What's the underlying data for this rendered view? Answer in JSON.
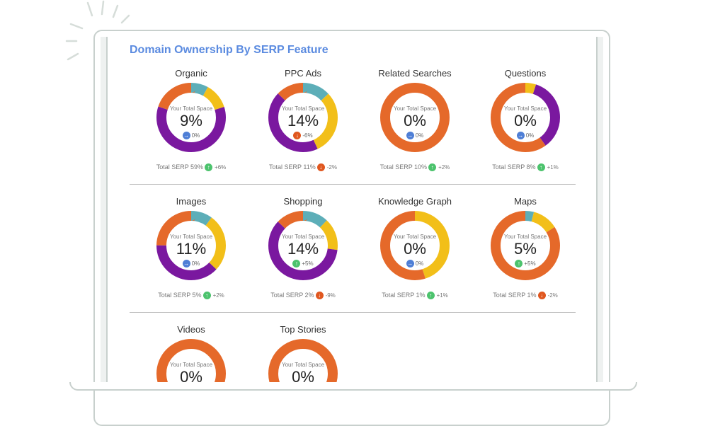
{
  "page": {
    "title": "Domain Ownership By SERP Feature"
  },
  "colors": {
    "orange": "#e5692a",
    "teal": "#5daeb8",
    "yellow": "#f2bf19",
    "purple": "#7a189f",
    "accent": "#5b8be0"
  },
  "cards": [
    {
      "title": "Organic",
      "center_label": "Your Total Space",
      "percent": "9%",
      "trend_icon": "arrow-right-icon",
      "trend_text": "0%",
      "footer_label": "Total SERP 59%",
      "footer_icon": "arrow-up-icon",
      "footer_change": "+6%",
      "segments": [
        {
          "color": "teal",
          "value": 0.08
        },
        {
          "color": "yellow",
          "value": 0.12
        },
        {
          "color": "purple",
          "value": 0.6
        },
        {
          "color": "orange",
          "value": 0.2
        }
      ]
    },
    {
      "title": "PPC Ads",
      "center_label": "Your Total Space",
      "percent": "14%",
      "trend_icon": "arrow-down-icon",
      "trend_text": "-6%",
      "footer_label": "Total SERP 11%",
      "footer_icon": "arrow-down-icon",
      "footer_change": "-2%",
      "segments": [
        {
          "color": "teal",
          "value": 0.13
        },
        {
          "color": "yellow",
          "value": 0.3
        },
        {
          "color": "purple",
          "value": 0.44
        },
        {
          "color": "orange",
          "value": 0.13
        }
      ]
    },
    {
      "title": "Related Searches",
      "center_label": "Your Total Space",
      "percent": "0%",
      "trend_icon": "arrow-right-icon",
      "trend_text": "0%",
      "footer_label": "Total SERP 10%",
      "footer_icon": "arrow-up-icon",
      "footer_change": "+2%",
      "segments": [
        {
          "color": "orange",
          "value": 1.0
        }
      ]
    },
    {
      "title": "Questions",
      "center_label": "Your Total Space",
      "percent": "0%",
      "trend_icon": "arrow-right-icon",
      "trend_text": "0%",
      "footer_label": "Total SERP 8%",
      "footer_icon": "arrow-up-icon",
      "footer_change": "+1%",
      "segments": [
        {
          "color": "yellow",
          "value": 0.05
        },
        {
          "color": "purple",
          "value": 0.35
        },
        {
          "color": "orange",
          "value": 0.6
        }
      ]
    },
    {
      "title": "Images",
      "center_label": "Your Total Space",
      "percent": "11%",
      "trend_icon": "arrow-right-icon",
      "trend_text": "0%",
      "footer_label": "Total SERP 5%",
      "footer_icon": "arrow-up-icon",
      "footer_change": "+2%",
      "segments": [
        {
          "color": "teal",
          "value": 0.1
        },
        {
          "color": "yellow",
          "value": 0.27
        },
        {
          "color": "purple",
          "value": 0.38
        },
        {
          "color": "orange",
          "value": 0.25
        }
      ]
    },
    {
      "title": "Shopping",
      "center_label": "Your Total Space",
      "percent": "14%",
      "trend_icon": "arrow-up-icon",
      "trend_text": "+5%",
      "footer_label": "Total SERP 2%",
      "footer_icon": "arrow-down-icon",
      "footer_change": "-9%",
      "segments": [
        {
          "color": "teal",
          "value": 0.12
        },
        {
          "color": "yellow",
          "value": 0.15
        },
        {
          "color": "purple",
          "value": 0.6
        },
        {
          "color": "orange",
          "value": 0.13
        }
      ]
    },
    {
      "title": "Knowledge Graph",
      "center_label": "Your Total Space",
      "percent": "0%",
      "trend_icon": "arrow-right-icon",
      "trend_text": "0%",
      "footer_label": "Total SERP 1%",
      "footer_icon": "arrow-up-icon",
      "footer_change": "+1%",
      "segments": [
        {
          "color": "yellow",
          "value": 0.45
        },
        {
          "color": "orange",
          "value": 0.55
        }
      ]
    },
    {
      "title": "Maps",
      "center_label": "Your Total Space",
      "percent": "5%",
      "trend_icon": "arrow-up-icon",
      "trend_text": "+5%",
      "footer_label": "Total SERP 1%",
      "footer_icon": "arrow-down-icon",
      "footer_change": "-2%",
      "segments": [
        {
          "color": "teal",
          "value": 0.04
        },
        {
          "color": "yellow",
          "value": 0.12
        },
        {
          "color": "orange",
          "value": 0.84
        }
      ]
    },
    {
      "title": "Videos",
      "center_label": "Your Total Space",
      "percent": "0%",
      "segments": [
        {
          "color": "orange",
          "value": 1.0
        }
      ]
    },
    {
      "title": "Top Stories",
      "center_label": "Your Total Space",
      "percent": "0%",
      "segments": [
        {
          "color": "orange",
          "value": 1.0
        }
      ]
    }
  ]
}
